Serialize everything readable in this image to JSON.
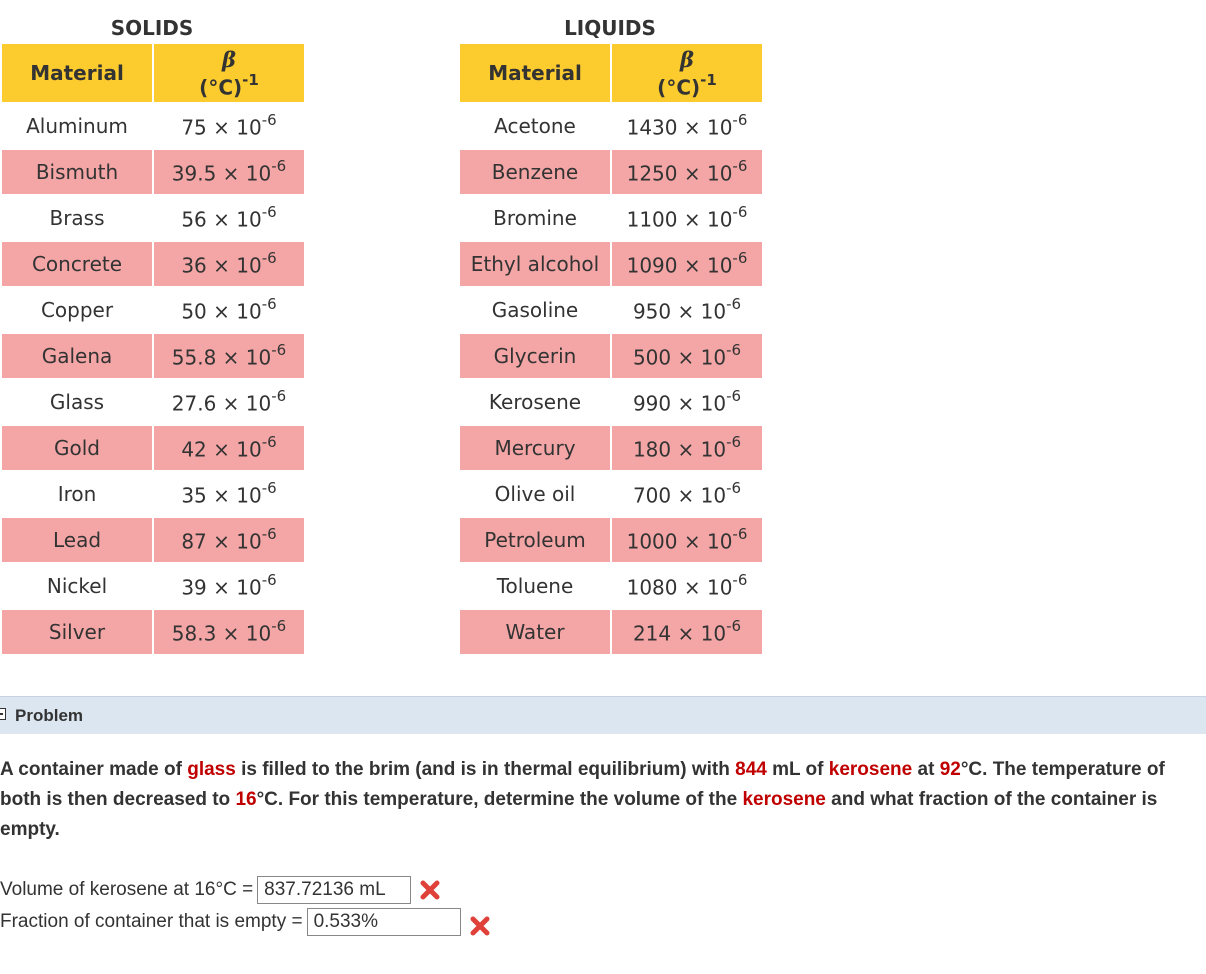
{
  "solids": {
    "title": "SOLIDS",
    "header": {
      "material": "Material",
      "beta_symbol": "β",
      "beta_unit": "(°C)",
      "beta_exp": "-1"
    },
    "rows": [
      {
        "material": "Aluminum",
        "coef": "75 × 10",
        "exp": "-6"
      },
      {
        "material": "Bismuth",
        "coef": "39.5 × 10",
        "exp": "-6"
      },
      {
        "material": "Brass",
        "coef": "56 × 10",
        "exp": "-6"
      },
      {
        "material": "Concrete",
        "coef": "36 × 10",
        "exp": "-6"
      },
      {
        "material": "Copper",
        "coef": "50 × 10",
        "exp": "-6"
      },
      {
        "material": "Galena",
        "coef": "55.8 × 10",
        "exp": "-6"
      },
      {
        "material": "Glass",
        "coef": "27.6 × 10",
        "exp": "-6"
      },
      {
        "material": "Gold",
        "coef": "42 × 10",
        "exp": "-6"
      },
      {
        "material": "Iron",
        "coef": "35 × 10",
        "exp": "-6"
      },
      {
        "material": "Lead",
        "coef": "87 × 10",
        "exp": "-6"
      },
      {
        "material": "Nickel",
        "coef": "39 × 10",
        "exp": "-6"
      },
      {
        "material": "Silver",
        "coef": "58.3 × 10",
        "exp": "-6"
      }
    ]
  },
  "liquids": {
    "title": "LIQUIDS",
    "header": {
      "material": "Material",
      "beta_symbol": "β",
      "beta_unit": "(°C)",
      "beta_exp": "-1"
    },
    "rows": [
      {
        "material": "Acetone",
        "coef": "1430 × 10",
        "exp": "-6"
      },
      {
        "material": "Benzene",
        "coef": "1250 × 10",
        "exp": "-6"
      },
      {
        "material": "Bromine",
        "coef": "1100 × 10",
        "exp": "-6"
      },
      {
        "material": "Ethyl alcohol",
        "coef": "1090 × 10",
        "exp": "-6"
      },
      {
        "material": "Gasoline",
        "coef": "950 × 10",
        "exp": "-6"
      },
      {
        "material": "Glycerin",
        "coef": "500 × 10",
        "exp": "-6"
      },
      {
        "material": "Kerosene",
        "coef": "990 × 10",
        "exp": "-6"
      },
      {
        "material": "Mercury",
        "coef": "180 × 10",
        "exp": "-6"
      },
      {
        "material": "Olive oil",
        "coef": "700 × 10",
        "exp": "-6"
      },
      {
        "material": "Petroleum",
        "coef": "1000 × 10",
        "exp": "-6"
      },
      {
        "material": "Toluene",
        "coef": "1080 × 10",
        "exp": "-6"
      },
      {
        "material": "Water",
        "coef": "214 × 10",
        "exp": "-6"
      }
    ]
  },
  "problem": {
    "label": "Problem",
    "text": {
      "p1": "A container made of ",
      "material": "glass",
      "p2": " is filled to the brim (and is in thermal equilibrium) with ",
      "volume": "844",
      "p3": " mL of ",
      "liquid": "kerosene",
      "p4": " at ",
      "temp_initial": "92",
      "p5": "°C. The temperature of both is then decreased to ",
      "temp_final": "16",
      "p6": "°C. For this temperature, determine the volume of the ",
      "liquid2": "kerosene",
      "p7": " and what fraction of the container is empty."
    },
    "answers": [
      {
        "label": "Volume of kerosene at 16°C =",
        "value": "837.72136 mL",
        "status_icon": "x-icon"
      },
      {
        "label": "Fraction of container that is empty =",
        "value": "0.533%",
        "status_icon": "x-icon"
      }
    ],
    "colors": {
      "highlight": "#c00000",
      "incorrect": "#e0403a",
      "header_bar": "#dce6f0"
    }
  },
  "colors": {
    "header": "#fccb2e",
    "alt_row": "#f4a6a6"
  }
}
